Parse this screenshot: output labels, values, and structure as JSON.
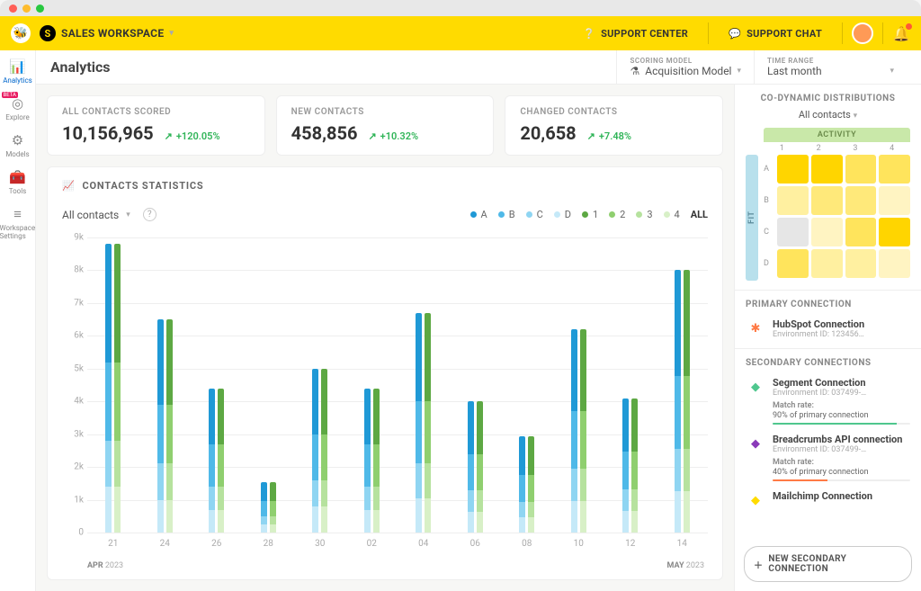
{
  "mac_dots": [
    "#ff5f57",
    "#febc2e",
    "#28c840"
  ],
  "topbar": {
    "workspace_label": "SALES WORKSPACE",
    "support_center": "SUPPORT CENTER",
    "support_chat": "SUPPORT CHAT"
  },
  "leftnav": [
    {
      "icon": "📊",
      "label": "Analytics",
      "active": true
    },
    {
      "icon": "◎",
      "label": "Explore",
      "beta": true
    },
    {
      "icon": "⚙",
      "label": "Models"
    },
    {
      "icon": "🧰",
      "label": "Tools"
    },
    {
      "icon": "≡",
      "label": "Workspace Settings"
    }
  ],
  "header": {
    "title": "Analytics",
    "scoring_label": "SCORING MODEL",
    "scoring_value": "Acquisition Model",
    "range_label": "TIME RANGE",
    "range_value": "Last month"
  },
  "metrics": [
    {
      "label": "ALL CONTACTS SCORED",
      "value": "10,156,965",
      "delta": "+120.05%"
    },
    {
      "label": "NEW CONTACTS",
      "value": "458,856",
      "delta": "+10.32%"
    },
    {
      "label": "CHANGED CONTACTS",
      "value": "20,658",
      "delta": "+7.48%"
    }
  ],
  "chart": {
    "title": "CONTACTS STATISTICS",
    "filter": "All contacts",
    "legend": [
      {
        "label": "A",
        "color": "#1f99d6"
      },
      {
        "label": "B",
        "color": "#4fb9e8"
      },
      {
        "label": "C",
        "color": "#8fd5f2"
      },
      {
        "label": "D",
        "color": "#c5e9f8"
      },
      {
        "label": "1",
        "color": "#5da843"
      },
      {
        "label": "2",
        "color": "#8fcf6f"
      },
      {
        "label": "3",
        "color": "#b6e29e"
      },
      {
        "label": "4",
        "color": "#d8f0c7"
      }
    ],
    "legend_all": "ALL",
    "ymax": 9000,
    "yticks": [
      0,
      "1k",
      "2k",
      "3k",
      "4k",
      "5k",
      "6k",
      "7k",
      "8k",
      "9k"
    ],
    "blue_stack": [
      "#c5e9f8",
      "#8fd5f2",
      "#4fb9e8",
      "#1f99d6"
    ],
    "green_stack": [
      "#d8f0c7",
      "#b6e29e",
      "#8fcf6f",
      "#5da843"
    ],
    "x": [
      "21",
      "24",
      "26",
      "28",
      "30",
      "02",
      "04",
      "06",
      "08",
      "10",
      "12",
      "14"
    ],
    "months": {
      "left_month": "APR",
      "left_year": "2023",
      "right_month": "MAY",
      "right_year": "2023"
    },
    "series": [
      {
        "blue": [
          1400,
          2800,
          5200,
          8800
        ],
        "green": [
          1400,
          2800,
          5200,
          8800
        ]
      },
      {
        "blue": [
          1000,
          2100,
          3900,
          6500
        ],
        "green": [
          1000,
          2100,
          3900,
          6500
        ]
      },
      {
        "blue": [
          700,
          1400,
          2700,
          4400
        ],
        "green": [
          700,
          1400,
          2700,
          4400
        ]
      },
      {
        "blue": [
          250,
          500,
          950,
          1550
        ],
        "green": [
          250,
          500,
          950,
          1550
        ]
      },
      {
        "blue": [
          800,
          1600,
          3000,
          5000
        ],
        "green": [
          800,
          1600,
          3000,
          5000
        ]
      },
      {
        "blue": [
          700,
          1400,
          2700,
          4400
        ],
        "green": [
          700,
          1400,
          2700,
          4400
        ]
      },
      {
        "blue": [
          1050,
          2100,
          4000,
          6700
        ],
        "green": [
          1050,
          2100,
          4000,
          6700
        ]
      },
      {
        "blue": [
          640,
          1280,
          2400,
          4000
        ],
        "green": [
          640,
          1280,
          2400,
          4000
        ]
      },
      {
        "blue": [
          470,
          940,
          1760,
          2950
        ],
        "green": [
          470,
          940,
          1760,
          2950
        ]
      },
      {
        "blue": [
          970,
          1950,
          3700,
          6200
        ],
        "green": [
          970,
          1950,
          3700,
          6200
        ]
      },
      {
        "blue": [
          650,
          1310,
          2475,
          4100
        ],
        "green": [
          650,
          1310,
          2475,
          4100
        ]
      },
      {
        "blue": [
          1270,
          2540,
          4780,
          8000
        ],
        "green": [
          1270,
          2540,
          4780,
          8000
        ]
      }
    ]
  },
  "distributions": {
    "title": "CO-DYNAMIC DISTRIBUTIONS",
    "filter": "All contacts",
    "activity_label": "ACTIVITY",
    "fit_label": "FIT",
    "cols": [
      "1",
      "2",
      "3",
      "4"
    ],
    "rows": [
      "A",
      "B",
      "C",
      "D"
    ],
    "cells": [
      [
        "#ffd500",
        "#ffd500",
        "#ffe45c",
        "#ffe45c"
      ],
      [
        "#fff0a0",
        "#ffe97a",
        "#ffe97a",
        "#fff4c2"
      ],
      [
        "#e6e6e6",
        "#fff4c2",
        "#ffe45c",
        "#ffd500"
      ],
      [
        "#ffe45c",
        "#fff0a0",
        "#fff0a0",
        "#fff4c2"
      ]
    ]
  },
  "primary": {
    "title": "PRIMARY CONNECTION",
    "icon_color": "#ff7a45",
    "name": "HubSpot Connection",
    "env": "Environment ID: 123456…"
  },
  "secondary": {
    "title": "SECONDARY CONNECTIONS",
    "items": [
      {
        "icon_color": "#4fc78e",
        "name": "Segment Connection",
        "env": "Environment ID: 037499-…",
        "match_label": "Match rate:",
        "pct": "90% of primary connection",
        "pct_val": 90,
        "bar": "#4fc78e"
      },
      {
        "icon_color": "#8a3ab9",
        "name": "Breadcrumbs API connection",
        "env": "Environment ID: 037499-…",
        "match_label": "Match rate:",
        "pct": "40% of primary connection",
        "pct_val": 40,
        "bar": "#ff7a45"
      },
      {
        "icon_color": "#ffdb00",
        "name": "Mailchimp Connection",
        "env": "",
        "match_label": "",
        "pct": "",
        "pct_val": 0,
        "bar": "#ccc"
      }
    ],
    "new_label": "NEW SECONDARY CONNECTION"
  }
}
